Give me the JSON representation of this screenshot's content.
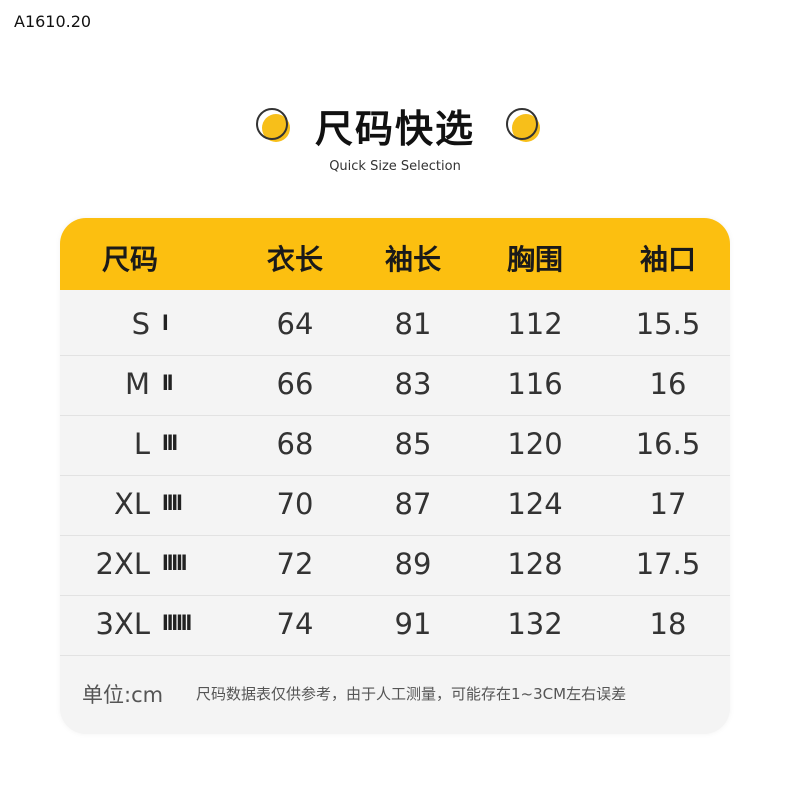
{
  "code": "A1610.20",
  "title": "尺码快选",
  "subtitle": "Quick Size Selection",
  "accent_color": "#fcbf10",
  "headers": [
    "尺码",
    "衣长",
    "袖长",
    "胸围",
    "袖口"
  ],
  "rows": [
    {
      "size": "S",
      "tally": "I",
      "values": [
        "64",
        "81",
        "112",
        "15.5"
      ]
    },
    {
      "size": "M",
      "tally": "II",
      "values": [
        "66",
        "83",
        "116",
        "16"
      ]
    },
    {
      "size": "L",
      "tally": "III",
      "values": [
        "68",
        "85",
        "120",
        "16.5"
      ]
    },
    {
      "size": "XL",
      "tally": "IIII",
      "values": [
        "70",
        "87",
        "124",
        "17"
      ]
    },
    {
      "size": "2XL",
      "tally": "IIIII",
      "values": [
        "72",
        "89",
        "128",
        "17.5"
      ]
    },
    {
      "size": "3XL",
      "tally": "IIIIII",
      "values": [
        "74",
        "91",
        "132",
        "18"
      ]
    }
  ],
  "footer": {
    "unit": "单位:cm",
    "note": "尺码数据表仅供参考，由于人工测量，可能存在1~3CM左右误差"
  }
}
